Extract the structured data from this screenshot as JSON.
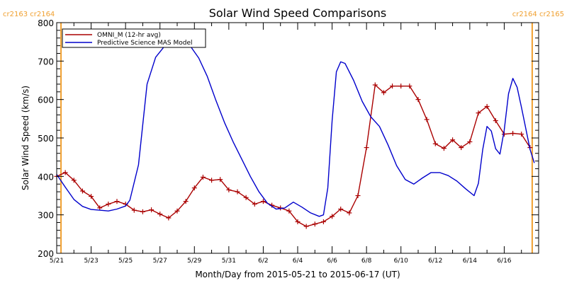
{
  "chart_data": {
    "type": "line",
    "title": "Solar Wind Speed Comparisons",
    "xlabel": "Month/Day from 2015-05-21 to 2015-06-17 (UT)",
    "ylabel": "Solar Wind Speed (km/s)",
    "ylim": [
      200,
      800
    ],
    "yticks": [
      "200",
      "300",
      "400",
      "500",
      "600",
      "700",
      "800"
    ],
    "xlim": [
      "2015-05-21",
      "2015-06-18"
    ],
    "xticks": [
      "5/21",
      "5/23",
      "5/25",
      "5/27",
      "5/29",
      "5/31",
      "6/2",
      "6/4",
      "6/6",
      "6/8",
      "6/10",
      "6/12",
      "6/14",
      "6/16"
    ],
    "grid": false,
    "legend_position": "top-left",
    "carrington_labels": {
      "top_left": "cr2163 cr2164",
      "top_right": "cr2164 cr2165",
      "boundary_dates": [
        "2015-05-21T06:00",
        "2015-06-17T15:00"
      ],
      "color": "#f0a030"
    },
    "series": [
      {
        "name": "OMNI_M (12-hr avg)",
        "color": "#aa0000",
        "marker": "+",
        "points": [
          [
            "2015-05-21T00:00",
            400
          ],
          [
            "2015-05-21T12:00",
            410
          ],
          [
            "2015-05-22T00:00",
            390
          ],
          [
            "2015-05-22T12:00",
            362
          ],
          [
            "2015-05-23T00:00",
            348
          ],
          [
            "2015-05-23T12:00",
            318
          ],
          [
            "2015-05-24T00:00",
            328
          ],
          [
            "2015-05-24T12:00",
            335
          ],
          [
            "2015-05-25T00:00",
            328
          ],
          [
            "2015-05-25T12:00",
            312
          ],
          [
            "2015-05-26T00:00",
            308
          ],
          [
            "2015-05-26T12:00",
            313
          ],
          [
            "2015-05-27T00:00",
            302
          ],
          [
            "2015-05-27T12:00",
            292
          ],
          [
            "2015-05-28T00:00",
            310
          ],
          [
            "2015-05-28T12:00",
            335
          ],
          [
            "2015-05-29T00:00",
            370
          ],
          [
            "2015-05-29T12:00",
            398
          ],
          [
            "2015-05-30T00:00",
            390
          ],
          [
            "2015-05-30T12:00",
            392
          ],
          [
            "2015-05-31T00:00",
            365
          ],
          [
            "2015-05-31T12:00",
            360
          ],
          [
            "2015-06-01T00:00",
            345
          ],
          [
            "2015-06-01T12:00",
            328
          ],
          [
            "2015-06-02T00:00",
            335
          ],
          [
            "2015-06-02T12:00",
            325
          ],
          [
            "2015-06-03T00:00",
            318
          ],
          [
            "2015-06-03T12:00",
            310
          ],
          [
            "2015-06-04T00:00",
            282
          ],
          [
            "2015-06-04T12:00",
            270
          ],
          [
            "2015-06-05T00:00",
            276
          ],
          [
            "2015-06-05T12:00",
            282
          ],
          [
            "2015-06-06T00:00",
            296
          ],
          [
            "2015-06-06T12:00",
            315
          ],
          [
            "2015-06-07T00:00",
            305
          ],
          [
            "2015-06-07T12:00",
            350
          ],
          [
            "2015-06-08T00:00",
            475
          ],
          [
            "2015-06-08T12:00",
            638
          ],
          [
            "2015-06-09T00:00",
            618
          ],
          [
            "2015-06-09T12:00",
            635
          ],
          [
            "2015-06-10T00:00",
            635
          ],
          [
            "2015-06-10T12:00",
            635
          ],
          [
            "2015-06-11T00:00",
            600
          ],
          [
            "2015-06-11T12:00",
            548
          ],
          [
            "2015-06-12T00:00",
            485
          ],
          [
            "2015-06-12T12:00",
            473
          ],
          [
            "2015-06-13T00:00",
            495
          ],
          [
            "2015-06-13T12:00",
            475
          ],
          [
            "2015-06-14T00:00",
            490
          ],
          [
            "2015-06-14T12:00",
            565
          ],
          [
            "2015-06-15T00:00",
            582
          ],
          [
            "2015-06-15T12:00",
            545
          ],
          [
            "2015-06-16T00:00",
            510
          ],
          [
            "2015-06-16T12:00",
            512
          ],
          [
            "2015-06-17T00:00",
            510
          ],
          [
            "2015-06-17T12:00",
            475
          ]
        ]
      },
      {
        "name": "Predictive Science MAS Model",
        "color": "#0000cc",
        "marker": "none",
        "points": [
          [
            "2015-05-21T00:00",
            405
          ],
          [
            "2015-05-21T12:00",
            372
          ],
          [
            "2015-05-22T00:00",
            340
          ],
          [
            "2015-05-22T12:00",
            322
          ],
          [
            "2015-05-23T00:00",
            314
          ],
          [
            "2015-05-23T12:00",
            312
          ],
          [
            "2015-05-24T00:00",
            310
          ],
          [
            "2015-05-24T12:00",
            315
          ],
          [
            "2015-05-25T00:00",
            323
          ],
          [
            "2015-05-25T06:00",
            338
          ],
          [
            "2015-05-25T18:00",
            430
          ],
          [
            "2015-05-26T06:00",
            640
          ],
          [
            "2015-05-26T18:00",
            710
          ],
          [
            "2015-05-27T06:00",
            738
          ],
          [
            "2015-05-27T18:00",
            748
          ],
          [
            "2015-05-28T06:00",
            750
          ],
          [
            "2015-05-28T18:00",
            740
          ],
          [
            "2015-05-29T06:00",
            708
          ],
          [
            "2015-05-29T18:00",
            660
          ],
          [
            "2015-05-30T06:00",
            598
          ],
          [
            "2015-05-30T18:00",
            540
          ],
          [
            "2015-05-31T06:00",
            490
          ],
          [
            "2015-05-31T18:00",
            445
          ],
          [
            "2015-06-01T06:00",
            400
          ],
          [
            "2015-06-01T18:00",
            360
          ],
          [
            "2015-06-02T06:00",
            330
          ],
          [
            "2015-06-02T18:00",
            315
          ],
          [
            "2015-06-03T06:00",
            318
          ],
          [
            "2015-06-03T18:00",
            333
          ],
          [
            "2015-06-04T06:00",
            320
          ],
          [
            "2015-06-04T18:00",
            305
          ],
          [
            "2015-06-05T06:00",
            296
          ],
          [
            "2015-06-05T12:00",
            300
          ],
          [
            "2015-06-05T18:00",
            370
          ],
          [
            "2015-06-06T00:00",
            545
          ],
          [
            "2015-06-06T06:00",
            672
          ],
          [
            "2015-06-06T12:00",
            698
          ],
          [
            "2015-06-06T18:00",
            694
          ],
          [
            "2015-06-07T06:00",
            650
          ],
          [
            "2015-06-07T18:00",
            595
          ],
          [
            "2015-06-08T06:00",
            555
          ],
          [
            "2015-06-08T18:00",
            530
          ],
          [
            "2015-06-09T06:00",
            482
          ],
          [
            "2015-06-09T18:00",
            428
          ],
          [
            "2015-06-10T06:00",
            392
          ],
          [
            "2015-06-10T18:00",
            380
          ],
          [
            "2015-06-11T06:00",
            396
          ],
          [
            "2015-06-11T18:00",
            410
          ],
          [
            "2015-06-12T06:00",
            410
          ],
          [
            "2015-06-12T18:00",
            402
          ],
          [
            "2015-06-13T06:00",
            388
          ],
          [
            "2015-06-13T18:00",
            368
          ],
          [
            "2015-06-14T06:00",
            350
          ],
          [
            "2015-06-14T12:00",
            382
          ],
          [
            "2015-06-14T18:00",
            470
          ],
          [
            "2015-06-15T00:00",
            530
          ],
          [
            "2015-06-15T06:00",
            518
          ],
          [
            "2015-06-15T12:00",
            472
          ],
          [
            "2015-06-15T18:00",
            458
          ],
          [
            "2015-06-16T00:00",
            520
          ],
          [
            "2015-06-16T06:00",
            615
          ],
          [
            "2015-06-16T12:00",
            655
          ],
          [
            "2015-06-16T18:00",
            632
          ],
          [
            "2015-06-17T00:00",
            580
          ],
          [
            "2015-06-17T06:00",
            525
          ],
          [
            "2015-06-17T12:00",
            470
          ],
          [
            "2015-06-17T18:00",
            435
          ]
        ]
      }
    ]
  }
}
